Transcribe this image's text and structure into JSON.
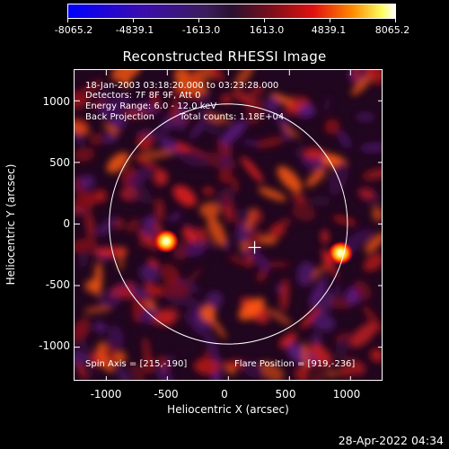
{
  "colorbar": {
    "labels": [
      "-8065.2",
      "-4839.1",
      "-1613.0",
      "1613.0",
      "4839.1",
      "8065.2"
    ]
  },
  "title": "Reconstructed RHESSI Image",
  "info": {
    "time_range": "18-Jan-2003 03:18:20.000 to 03:23:28.000",
    "detectors": "Detectors: 7F 8F 9F, Att 0",
    "energy": "Energy Range: 6.0 - 12.0 keV",
    "method": "Back Projection",
    "counts": "Total counts: 1.18E+04",
    "spin_axis": "Spin Axis = [215,-190]",
    "flare_position": "Flare Position = [919,-236]"
  },
  "axes": {
    "x_title": "Heliocentric X (arcsec)",
    "y_title": "Heliocentric Y (arcsec)",
    "x_ticks": [
      "-1000",
      "-500",
      "0",
      "500",
      "1000"
    ],
    "y_ticks": [
      "1000",
      "500",
      "0",
      "-500",
      "-1000"
    ],
    "xlim": [
      -1260,
      1270
    ],
    "ylim": [
      -1280,
      1250
    ]
  },
  "solar_limb_radius": 975,
  "spin_axis_point": [
    215,
    -190
  ],
  "sources": [
    {
      "x": -510,
      "y": -140
    },
    {
      "x": 919,
      "y": -236
    }
  ],
  "timestamp": "28-Apr-2022 04:34"
}
